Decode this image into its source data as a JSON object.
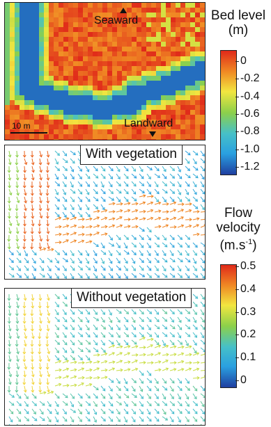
{
  "panels": {
    "bed": {
      "seaward_label": "Seaward",
      "landward_label": "Landward",
      "scale_label": "10 m"
    },
    "vegetation": {
      "label": "With vegetation"
    },
    "no_vegetation": {
      "label": "Without vegetation"
    }
  },
  "colorbars": {
    "bed_level": {
      "title_line1": "Bed level",
      "title_line2": "(m)",
      "ticks": [
        "0",
        "-0.2",
        "-0.4",
        "-0.6",
        "-0.8",
        "-1.0",
        "-1.2"
      ],
      "range": [
        -1.3,
        0.1
      ],
      "colors": [
        "#1f3fa0",
        "#2aa0e0",
        "#46c0c8",
        "#8cd04a",
        "#f2e640",
        "#f08a24",
        "#e02a1a"
      ]
    },
    "flow_velocity": {
      "title_line1": "Flow",
      "title_line2": "velocity",
      "title_line3": "(m.s",
      "title_sup": "-1",
      "title_close": ")",
      "ticks": [
        "0.5",
        "0.4",
        "0.3",
        "0.2",
        "0.1",
        "0"
      ],
      "range": [
        0,
        0.5
      ],
      "colors": [
        "#1f3fa0",
        "#2aa0e0",
        "#46c0c8",
        "#8cd04a",
        "#f2e640",
        "#f08a24",
        "#e02a1a"
      ]
    }
  }
}
